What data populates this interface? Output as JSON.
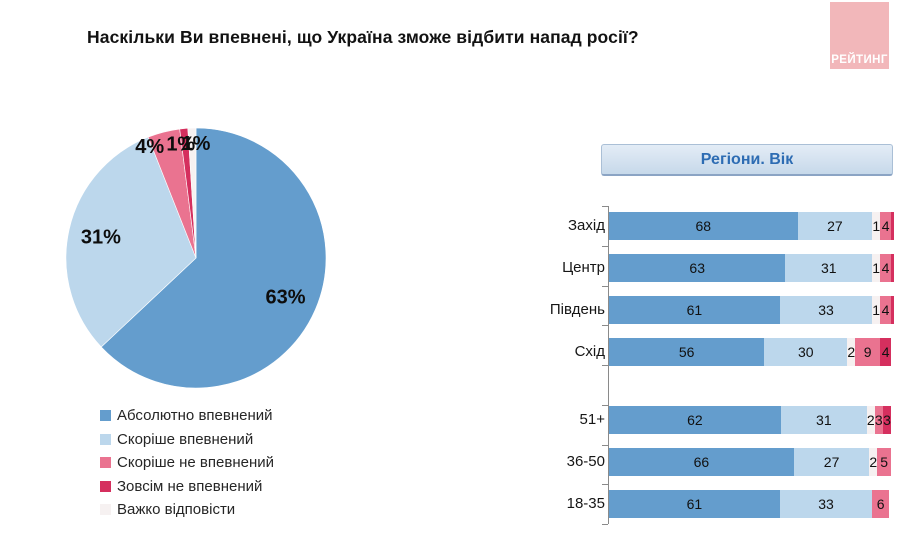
{
  "page": {
    "title": "Наскільки Ви впевнені, що Україна зможе відбити напад росії?"
  },
  "logo": {
    "text": "РЕЙТИНГ",
    "bg_color": "#f2b7ba",
    "text_color": "#ffffff"
  },
  "palette": {
    "absolutely": "#649dcd",
    "rather": "#bcd7ec",
    "hard": "#f6f1f1",
    "rather_not": "#ea7390",
    "not_at_all": "#d52f5e"
  },
  "legend": [
    {
      "key": "absolutely",
      "label": "Абсолютно впевнений"
    },
    {
      "key": "rather",
      "label": "Скоріше впевнений"
    },
    {
      "key": "rather_not",
      "label": "Скоріше не впевнений"
    },
    {
      "key": "not_at_all",
      "label": "Зовсім не впевнений"
    },
    {
      "key": "hard",
      "label": "Важко відповісти"
    }
  ],
  "chart_data": [
    {
      "type": "pie",
      "categories": [
        "Абсолютно впевнений",
        "Скоріше впевнений",
        "Скоріше не впевнений",
        "Зовсім не впевнений",
        "Важко відповісти"
      ],
      "keys": [
        "absolutely",
        "rather",
        "rather_not",
        "not_at_all",
        "hard"
      ],
      "values": [
        63,
        31,
        4,
        1,
        1
      ],
      "display_labels": [
        "63%",
        "31%",
        "4%",
        "1%",
        "1%"
      ],
      "start": "12-oclock",
      "direction": "clockwise",
      "legend_position": "bottom-left"
    },
    {
      "type": "bar",
      "subtype": "stacked-horizontal-100pct",
      "title": "Регіони. Вік",
      "series_order": [
        "absolutely",
        "rather",
        "hard",
        "rather_not",
        "not_at_all"
      ],
      "categories": [
        "Захід",
        "Центр",
        "Південь",
        "Схід",
        "51+",
        "36-50",
        "18-35"
      ],
      "rows": [
        {
          "category": "Захід",
          "group": "region",
          "values": [
            68,
            27,
            1,
            4,
            1
          ],
          "labels": [
            "68",
            "27",
            "1",
            "4",
            ""
          ]
        },
        {
          "category": "Центр",
          "group": "region",
          "values": [
            63,
            31,
            1,
            4,
            1
          ],
          "labels": [
            "63",
            "31",
            "1",
            "4",
            ""
          ]
        },
        {
          "category": "Південь",
          "group": "region",
          "values": [
            61,
            33,
            1,
            4,
            1
          ],
          "labels": [
            "61",
            "33",
            "1",
            "4",
            ""
          ]
        },
        {
          "category": "Схід",
          "group": "region",
          "values": [
            56,
            30,
            2,
            9,
            4
          ],
          "labels": [
            "56",
            "30",
            "2",
            "9",
            "4"
          ]
        },
        {
          "category": "51+",
          "group": "age",
          "values": [
            62,
            31,
            2,
            3,
            3
          ],
          "labels": [
            "62",
            "31",
            "2",
            "3",
            "3"
          ]
        },
        {
          "category": "36-50",
          "group": "age",
          "values": [
            66,
            27,
            2,
            5,
            0
          ],
          "labels": [
            "66",
            "27",
            "2",
            "5",
            ""
          ]
        },
        {
          "category": "18-35",
          "group": "age",
          "values": [
            61,
            33,
            0,
            6,
            0
          ],
          "labels": [
            "61",
            "33",
            "",
            "6",
            ""
          ]
        }
      ],
      "xlim": [
        0,
        100
      ],
      "grid": false
    }
  ]
}
